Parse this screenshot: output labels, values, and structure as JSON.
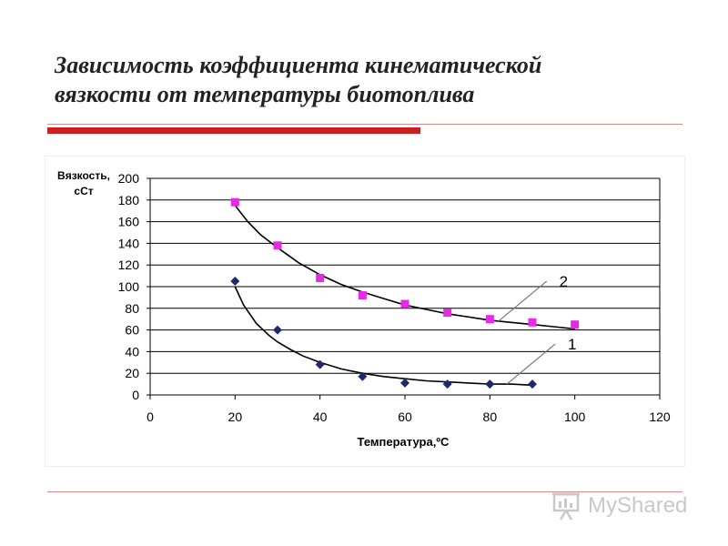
{
  "slide": {
    "title_line1": "Зависимость коэффициента кинематической",
    "title_line2": "вязкости от температуры биотоплива"
  },
  "watermark": {
    "text": "MyShared"
  },
  "colors": {
    "series1": "#1f2a6e",
    "series2": "#e62be6",
    "accent_bar": "#cc1f1f",
    "grid": "#000000"
  },
  "chart_data": {
    "type": "scatter",
    "title": "",
    "ylabel_line1": "Вязкость,",
    "ylabel_line2": "сСт",
    "xlabel": "Температура,ºС",
    "xlim": [
      0,
      120
    ],
    "ylim": [
      0,
      200
    ],
    "xticks": [
      0,
      20,
      40,
      60,
      80,
      100,
      120
    ],
    "yticks": [
      0,
      20,
      40,
      60,
      80,
      100,
      120,
      140,
      160,
      180,
      200
    ],
    "grid": "horizontal",
    "series": [
      {
        "label": "1",
        "marker": "diamond",
        "color": "#1f2a6e",
        "x": [
          20,
          30,
          40,
          50,
          60,
          70,
          80,
          90
        ],
        "y": [
          105,
          60,
          28,
          17,
          11,
          10,
          10,
          10
        ],
        "trend_x": [
          20,
          22,
          25,
          28,
          30,
          33,
          36,
          40,
          45,
          50,
          55,
          60,
          65,
          70,
          75,
          80,
          85,
          90
        ],
        "trend_y": [
          100,
          83,
          66,
          55,
          49,
          42,
          36,
          30,
          24,
          20,
          17,
          15,
          13,
          12,
          11,
          10,
          10,
          9
        ]
      },
      {
        "label": "2",
        "marker": "square",
        "color": "#e62be6",
        "x": [
          20,
          30,
          40,
          50,
          60,
          70,
          80,
          90,
          100
        ],
        "y": [
          178,
          138,
          108,
          92,
          84,
          76,
          70,
          67,
          65
        ],
        "trend_x": [
          20,
          23,
          26,
          30,
          35,
          40,
          45,
          50,
          55,
          60,
          65,
          70,
          75,
          80,
          85,
          90,
          95,
          100
        ],
        "trend_y": [
          175,
          160,
          148,
          136,
          122,
          111,
          102,
          95,
          89,
          83,
          79,
          75,
          72,
          69,
          67,
          65,
          63,
          61
        ]
      }
    ],
    "annotations": [
      {
        "text": "1",
        "series": 0,
        "point_x": 84,
        "point_y": 10
      },
      {
        "text": "2",
        "series": 1,
        "point_x": 82,
        "point_y": 68
      }
    ]
  }
}
